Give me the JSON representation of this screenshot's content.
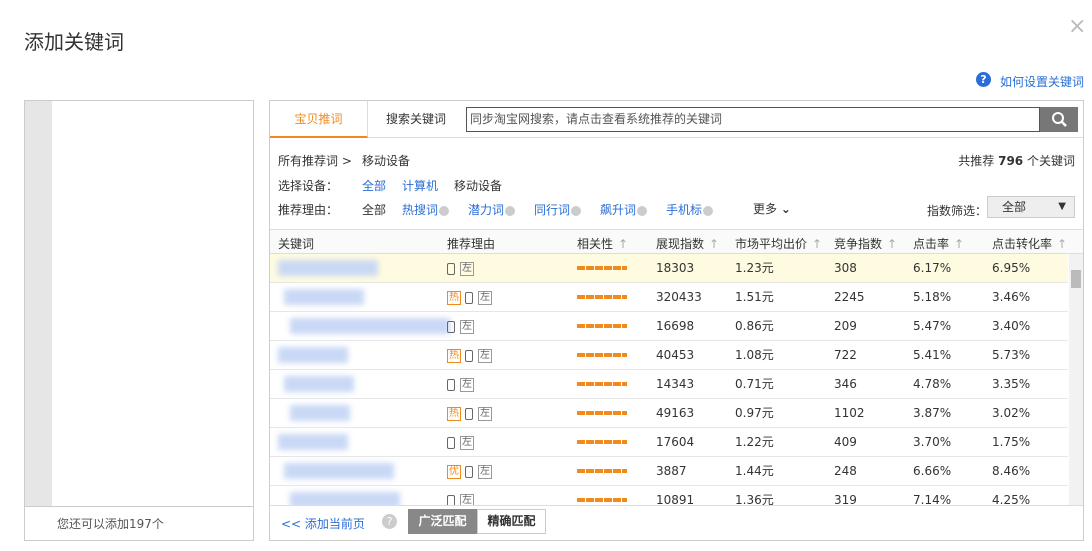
{
  "header": {
    "title": "添加关键词",
    "close": "×",
    "help": "如何设置关键词"
  },
  "left_panel": {
    "footer": "您还可以添加197个"
  },
  "tabs": [
    "宝贝推词",
    "搜索关键词"
  ],
  "search": {
    "placeholder": "同步淘宝网搜索，请点击查看系统推荐的关键词"
  },
  "breadcrumb": [
    "所有推荐词 >",
    "移动设备"
  ],
  "total": {
    "prefix": "共推荐",
    "count": "796",
    "suffix": "个关键词"
  },
  "device_filter": {
    "label": "选择设备：",
    "options": [
      "全部",
      "计算机",
      "移动设备"
    ]
  },
  "reason_filter": {
    "label": "推荐理由：",
    "options": [
      "全部",
      "热搜词",
      "潜力词",
      "同行词",
      "飙升词",
      "手机标"
    ],
    "more": "更多"
  },
  "index_filter": {
    "label": "指数筛选：",
    "value": "全部"
  },
  "table": {
    "headers": [
      "关键词",
      "推荐理由",
      "相关性",
      "展现指数",
      "市场平均出价",
      "竞争指数",
      "点击率",
      "点击转化率"
    ],
    "rows": [
      {
        "tags": [
          "左"
        ],
        "cells": [
          "18303",
          "1.23元",
          "308",
          "6.17%",
          "6.95%"
        ]
      },
      {
        "tags": [
          "热",
          "左"
        ],
        "cells": [
          "320433",
          "1.51元",
          "2245",
          "5.18%",
          "3.46%"
        ]
      },
      {
        "tags": [
          "左"
        ],
        "cells": [
          "16698",
          "0.86元",
          "209",
          "5.47%",
          "3.40%"
        ]
      },
      {
        "tags": [
          "热",
          "左"
        ],
        "cells": [
          "40453",
          "1.08元",
          "722",
          "5.41%",
          "5.73%"
        ]
      },
      {
        "tags": [
          "左"
        ],
        "cells": [
          "14343",
          "0.71元",
          "346",
          "4.78%",
          "3.35%"
        ]
      },
      {
        "tags": [
          "热",
          "左"
        ],
        "cells": [
          "49163",
          "0.97元",
          "1102",
          "3.87%",
          "3.02%"
        ]
      },
      {
        "tags": [
          "左"
        ],
        "cells": [
          "17604",
          "1.22元",
          "409",
          "3.70%",
          "1.75%"
        ]
      },
      {
        "tags": [
          "优",
          "左"
        ],
        "cells": [
          "3887",
          "1.44元",
          "248",
          "6.66%",
          "8.46%"
        ]
      },
      {
        "tags": [
          "左"
        ],
        "cells": [
          "10891",
          "1.36元",
          "319",
          "7.14%",
          "4.25%"
        ]
      }
    ]
  },
  "footer": {
    "add_page": "<< 添加当前页",
    "broad": "广泛匹配",
    "exact": "精确匹配"
  }
}
